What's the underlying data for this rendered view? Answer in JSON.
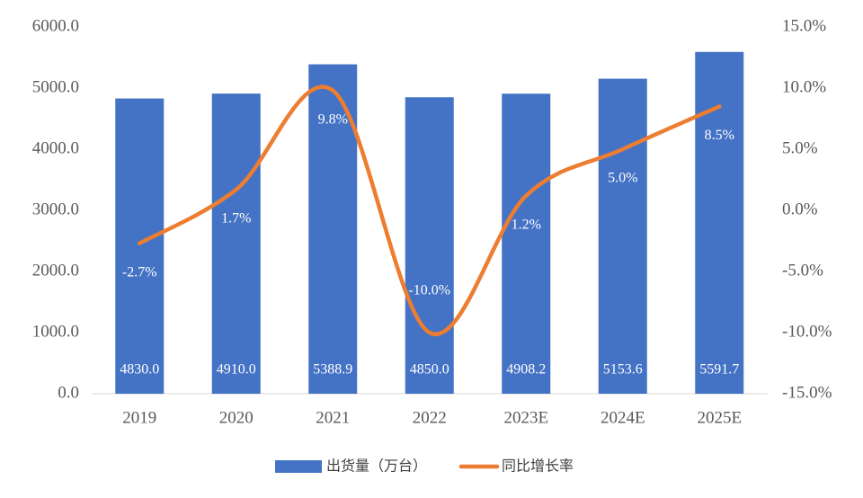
{
  "chart_data": {
    "type": "bar",
    "categories": [
      "2019",
      "2020",
      "2021",
      "2022",
      "2023E",
      "2024E",
      "2025E"
    ],
    "series": [
      {
        "name": "出货量（万台）",
        "color": "#4472c4",
        "values": [
          4830.0,
          4910.0,
          5388.9,
          4850.0,
          4908.2,
          5153.6,
          5591.7
        ],
        "value_labels": [
          "4830.0",
          "4910.0",
          "5388.9",
          "4850.0",
          "4908.2",
          "5153.6",
          "5591.7"
        ]
      },
      {
        "name": "同比增长率",
        "color": "#ed7d31",
        "type": "line",
        "axis": "y2",
        "values": [
          -2.7,
          1.7,
          9.8,
          -10.0,
          1.2,
          5.0,
          8.5
        ],
        "value_labels": [
          "-2.7%",
          "1.7%",
          "9.8%",
          "-10.0%",
          "1.2%",
          "5.0%",
          "8.5%"
        ]
      }
    ],
    "ylim": [
      0,
      6000
    ],
    "yticks": [
      {
        "value": 0,
        "label": "0.0"
      },
      {
        "value": 1000,
        "label": "1000.0"
      },
      {
        "value": 2000,
        "label": "2000.0"
      },
      {
        "value": 3000,
        "label": "3000.0"
      },
      {
        "value": 4000,
        "label": "4000.0"
      },
      {
        "value": 5000,
        "label": "5000.0"
      },
      {
        "value": 6000,
        "label": "6000.0"
      }
    ],
    "y2lim": [
      -15,
      15
    ],
    "y2ticks": [
      {
        "value": -15,
        "label": "-15.0%"
      },
      {
        "value": -10,
        "label": "-10.0%"
      },
      {
        "value": -5,
        "label": "-5.0%"
      },
      {
        "value": 0,
        "label": "0.0%"
      },
      {
        "value": 5,
        "label": "5.0%"
      },
      {
        "value": 10,
        "label": "10.0%"
      },
      {
        "value": 15,
        "label": "15.0%"
      }
    ],
    "grid": false,
    "legend": "bottom"
  }
}
